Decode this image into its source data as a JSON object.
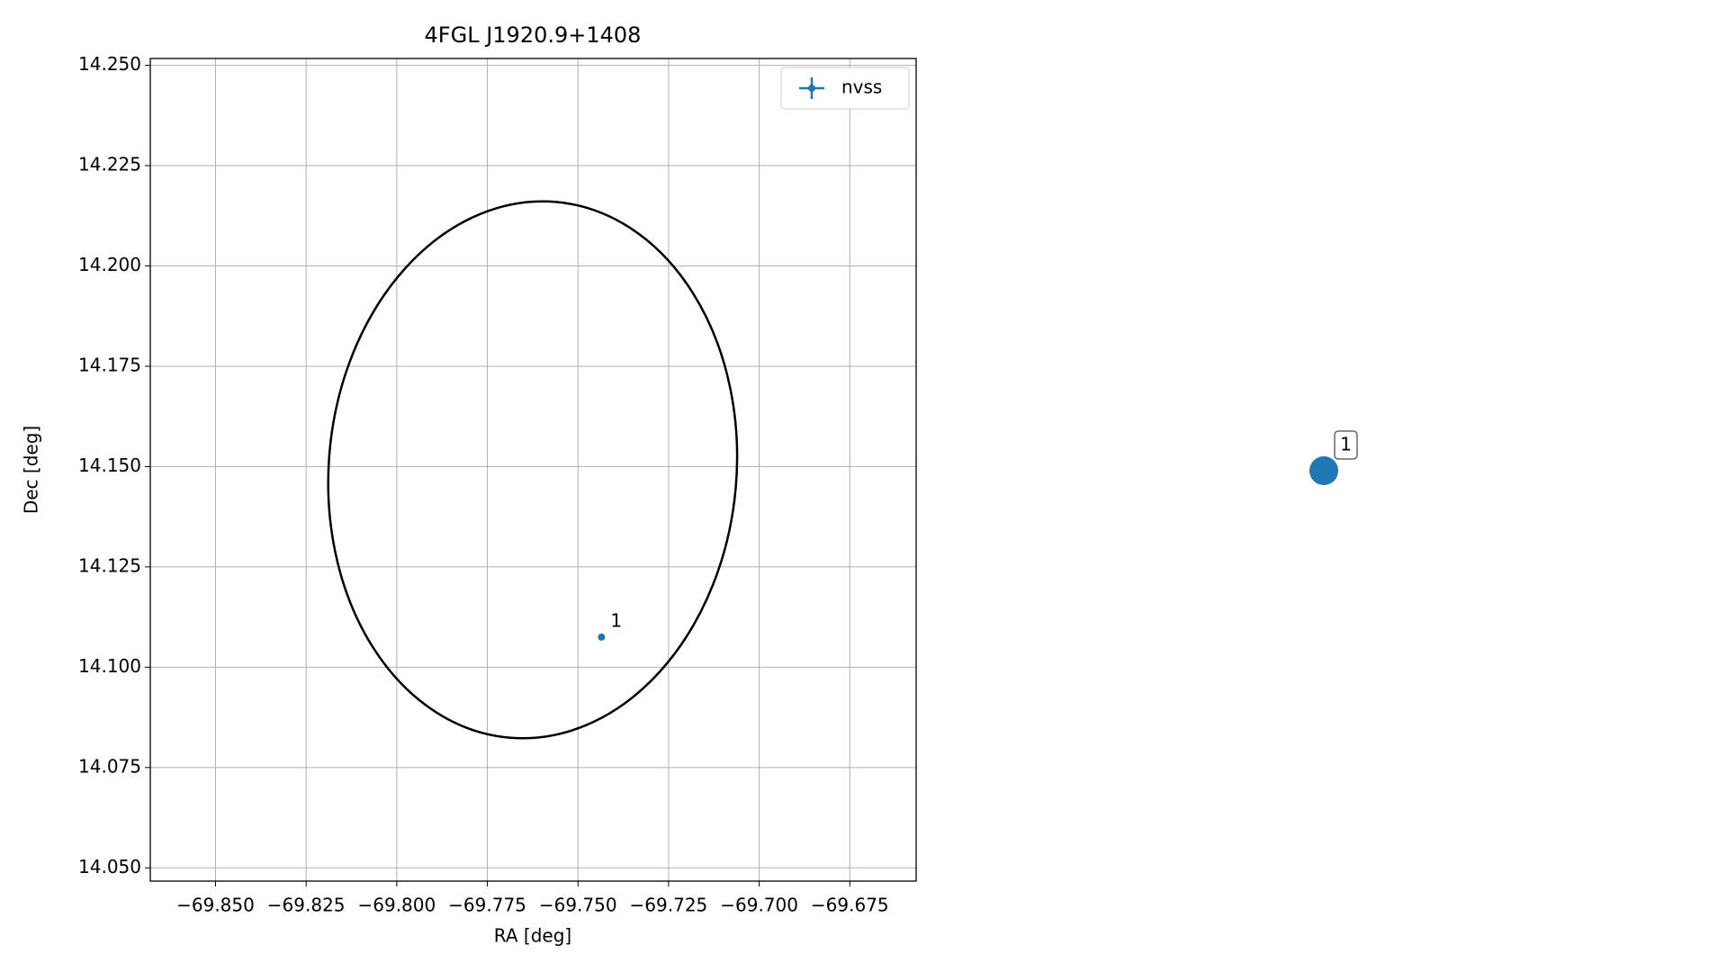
{
  "chart_data": [
    {
      "type": "scatter",
      "title": "4FGL J1920.9+1408",
      "xlabel": "RA [deg]",
      "ylabel": "Dec [deg]",
      "xlim": [
        -69.868,
        -69.6567
      ],
      "ylim": [
        14.0467,
        14.2517
      ],
      "xticks": [
        {
          "value": -69.85,
          "label": "−69.850"
        },
        {
          "value": -69.825,
          "label": "−69.825"
        },
        {
          "value": -69.8,
          "label": "−69.800"
        },
        {
          "value": -69.775,
          "label": "−69.775"
        },
        {
          "value": -69.75,
          "label": "−69.750"
        },
        {
          "value": -69.725,
          "label": "−69.725"
        },
        {
          "value": -69.7,
          "label": "−69.700"
        },
        {
          "value": -69.675,
          "label": "−69.675"
        }
      ],
      "yticks": [
        {
          "value": 14.05,
          "label": "14.050"
        },
        {
          "value": 14.075,
          "label": "14.075"
        },
        {
          "value": 14.1,
          "label": "14.100"
        },
        {
          "value": 14.125,
          "label": "14.125"
        },
        {
          "value": 14.15,
          "label": "14.150"
        },
        {
          "value": 14.175,
          "label": "14.175"
        },
        {
          "value": 14.2,
          "label": "14.200"
        },
        {
          "value": 14.225,
          "label": "14.225"
        },
        {
          "value": 14.25,
          "label": "14.250"
        }
      ],
      "grid": true,
      "legend": "upper right",
      "ellipse": {
        "center": [
          -69.7625,
          14.1492
        ],
        "width": 0.1125,
        "height": 0.134,
        "angle": -5,
        "color": "#000000"
      },
      "series": [
        {
          "name": "nvss",
          "color": "#1f77b4",
          "x": [
            -69.7435
          ],
          "y": [
            14.1075
          ],
          "labels": [
            "1"
          ]
        }
      ]
    },
    {
      "type": "scatter",
      "series": [
        {
          "color": "#1f77b4",
          "labels": [
            "1"
          ]
        }
      ]
    }
  ]
}
